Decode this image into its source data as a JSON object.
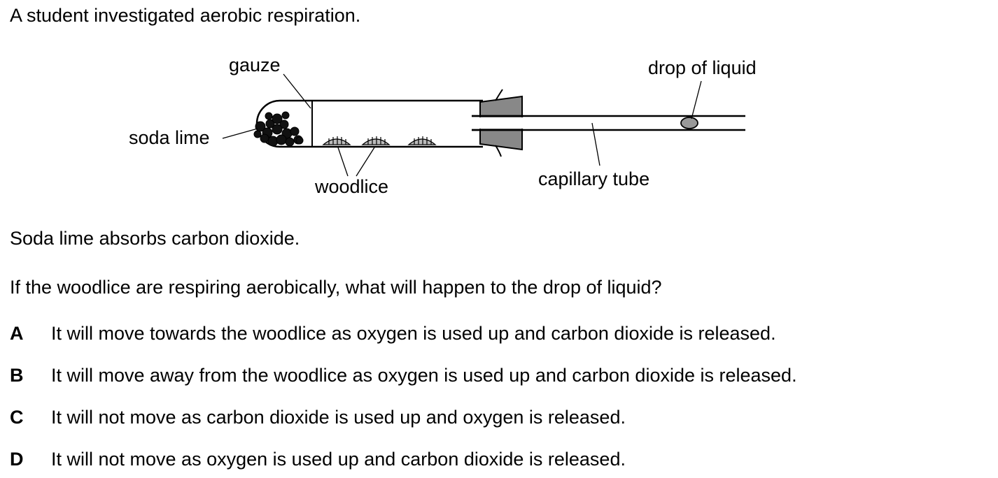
{
  "intro": "A student investigated aerobic respiration.",
  "diagram": {
    "labels": {
      "gauze": "gauze",
      "soda_lime": "soda lime",
      "woodlice": "woodlice",
      "drop_of_liquid": "drop of liquid",
      "capillary_tube": "capillary tube"
    }
  },
  "statement": "Soda lime absorbs carbon dioxide.",
  "question": "If the woodlice are respiring aerobically, what will happen to the drop of liquid?",
  "options": [
    {
      "letter": "A",
      "text": "It will move towards the woodlice as oxygen is used up and carbon dioxide is released."
    },
    {
      "letter": "B",
      "text": "It will move away from the woodlice as oxygen is used up and carbon dioxide is released."
    },
    {
      "letter": "C",
      "text": "It will not move as carbon dioxide is used up and oxygen is released."
    },
    {
      "letter": "D",
      "text": "It will not move as oxygen is used up and carbon dioxide is released."
    }
  ],
  "colors": {
    "bung_fill": "#888888",
    "drop_fill": "#999999",
    "woodlouse_fill": "#bbbbbb",
    "soda_lime_fill": "#111111"
  }
}
